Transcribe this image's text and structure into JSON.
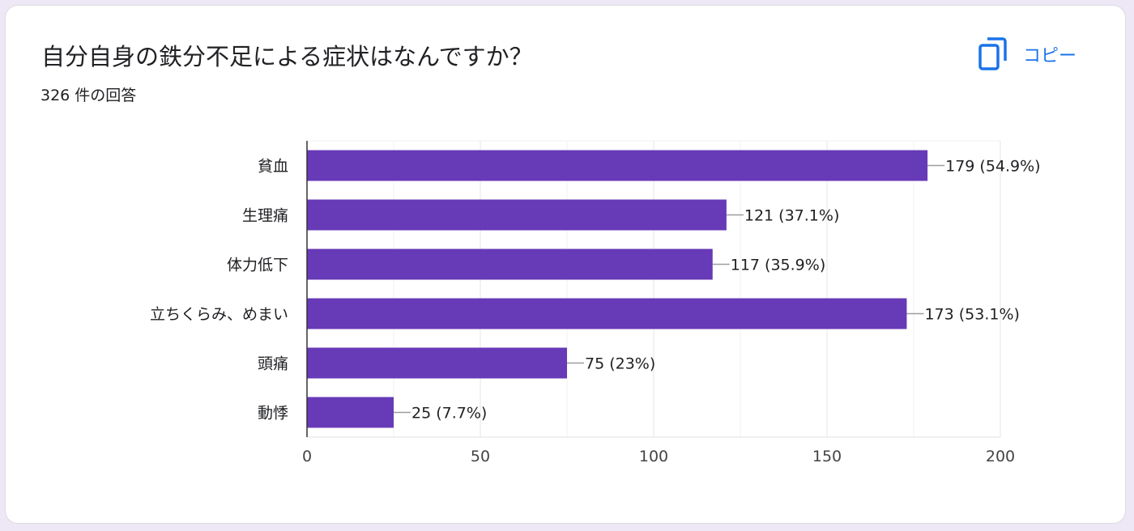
{
  "card": {
    "title": "自分自身の鉄分不足による症状はなんですか？",
    "response_count": "326 件の回答",
    "copy_label": "コピー"
  },
  "icons": {
    "copy": "copy-icon"
  },
  "colors": {
    "bar": "#673ab7",
    "accent": "#1a73e8",
    "text": "#202124",
    "grid": "#e0e0e0",
    "axis": "#333333"
  },
  "chart_data": {
    "type": "bar",
    "orientation": "horizontal",
    "categories": [
      "貧血",
      "生理痛",
      "体力低下",
      "立ちくらみ、めまい",
      "頭痛",
      "動悸"
    ],
    "values": [
      179,
      121,
      117,
      173,
      75,
      25
    ],
    "value_labels": [
      "179 (54.9%)",
      "121 (37.1%)",
      "117 (35.9%)",
      "173 (53.1%)",
      "75 (23%)",
      "25 (7.7%)"
    ],
    "xlim": [
      0,
      200
    ],
    "xticks": [
      0,
      50,
      100,
      150,
      200
    ],
    "grid": true,
    "legend": "none"
  }
}
